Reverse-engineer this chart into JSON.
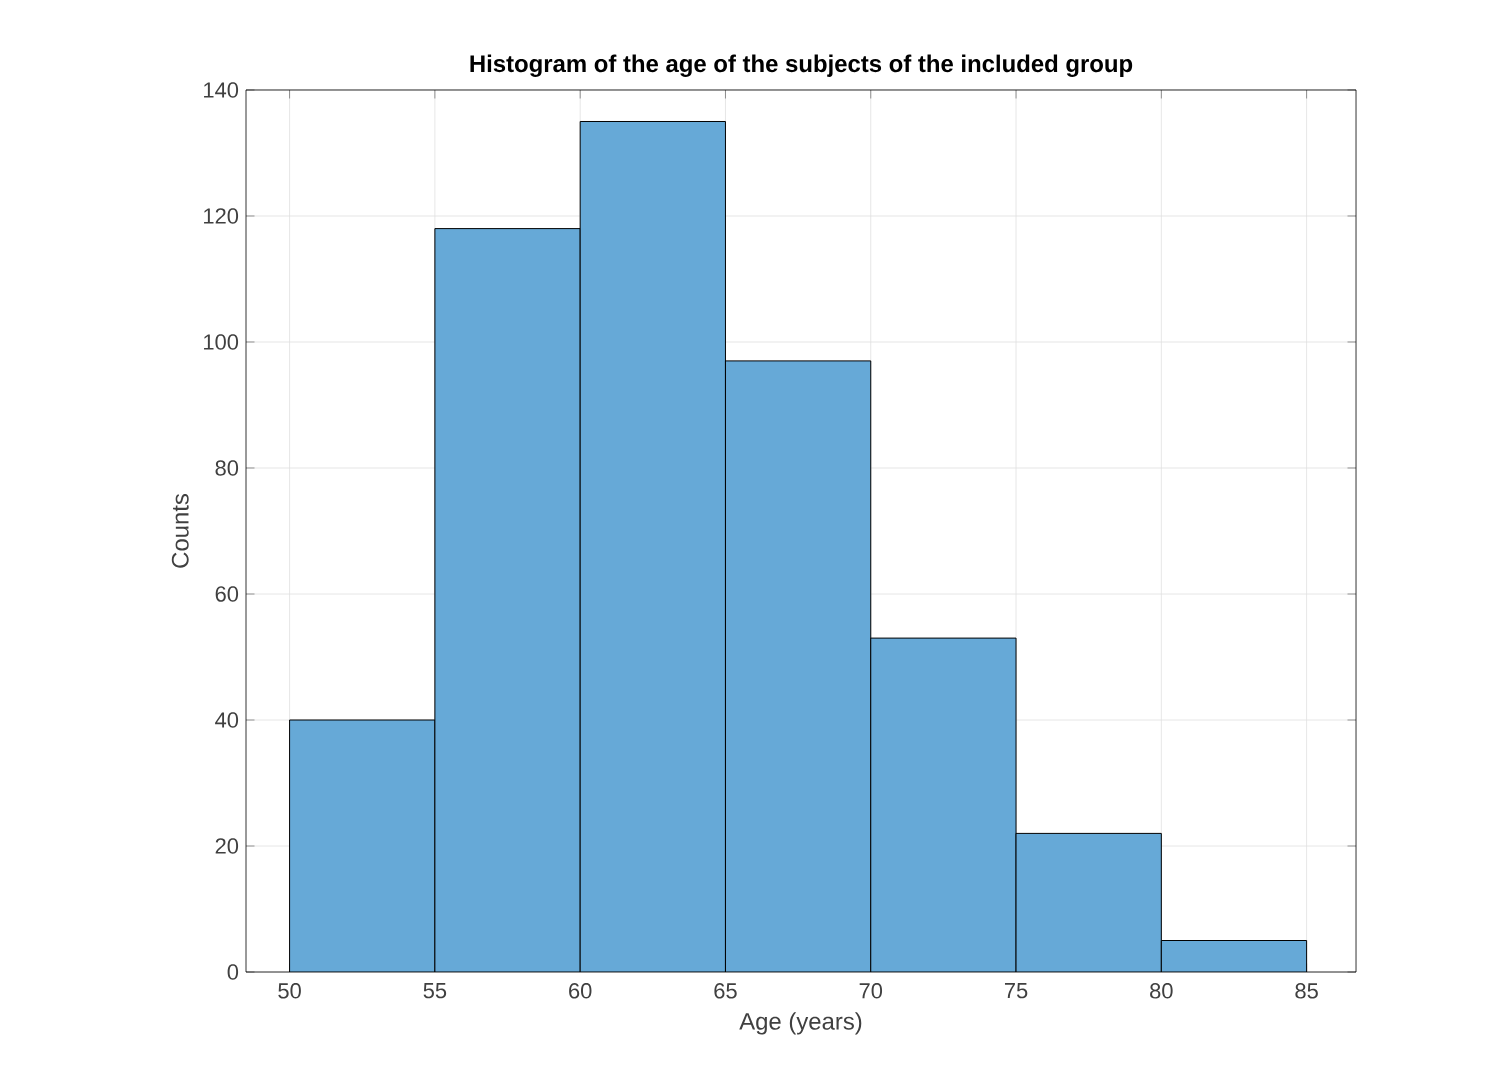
{
  "chart_data": {
    "type": "histogram",
    "title": "Histogram of the age of the subjects of the included group",
    "xlabel": "Age (years)",
    "ylabel": "Counts",
    "bins": [
      50,
      55,
      60,
      65,
      70,
      75,
      80,
      85
    ],
    "values": [
      40,
      118,
      135,
      97,
      53,
      22,
      5
    ],
    "color": "#66a9d7",
    "xlim": [
      48.5,
      86.7
    ],
    "ylim": [
      0,
      140
    ],
    "xticks": [
      50,
      55,
      60,
      65,
      70,
      75,
      80,
      85
    ],
    "yticks": [
      0,
      20,
      40,
      60,
      80,
      100,
      120,
      140
    ],
    "grid": true
  }
}
